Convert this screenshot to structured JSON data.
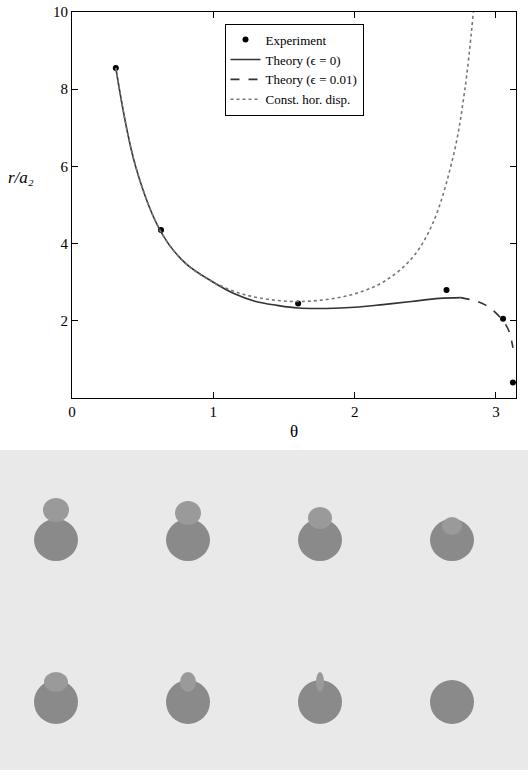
{
  "chart_data": {
    "type": "line",
    "x_label": "θ",
    "y_label": "r/a₂",
    "xlim": [
      0,
      3.1416
    ],
    "ylim": [
      0,
      10
    ],
    "xticks": [
      0,
      1,
      2,
      3
    ],
    "yticks": [
      2,
      4,
      6,
      8,
      10
    ],
    "grid": false,
    "legend": "top",
    "series": [
      {
        "name": "Experiment",
        "type": "scatter",
        "marker": "circle",
        "color": "#000000",
        "x": [
          0.31,
          0.63,
          1.6,
          2.65,
          3.05,
          3.12
        ],
        "values": [
          8.55,
          4.35,
          2.45,
          2.8,
          2.05,
          0.4
        ]
      },
      {
        "name": "Theory (ϵ = 0)",
        "type": "line",
        "line_style": "solid",
        "color": "#333333",
        "x": [
          0.31,
          0.45,
          0.63,
          0.8,
          1.0,
          1.15,
          1.3,
          1.45,
          1.6,
          1.8,
          2.0,
          2.2,
          2.4,
          2.6,
          2.75
        ],
        "values": [
          8.55,
          6.0,
          4.3,
          3.5,
          3.0,
          2.7,
          2.5,
          2.4,
          2.33,
          2.32,
          2.35,
          2.42,
          2.5,
          2.58,
          2.6
        ]
      },
      {
        "name": "Theory (ϵ = 0.01)",
        "type": "line",
        "line_style": "dashed",
        "color": "#333333",
        "x": [
          2.75,
          2.85,
          2.93,
          3.0,
          3.05,
          3.09,
          3.12
        ],
        "values": [
          2.6,
          2.52,
          2.4,
          2.2,
          2.0,
          1.75,
          1.3
        ]
      },
      {
        "name": "Const. hor. disp.",
        "type": "line",
        "line_style": "dotted",
        "color": "#777777",
        "x": [
          0.31,
          0.45,
          0.63,
          0.8,
          1.0,
          1.2,
          1.4,
          1.6,
          1.8,
          2.0,
          2.2,
          2.4,
          2.55,
          2.7,
          2.78,
          2.84
        ],
        "values": [
          8.55,
          6.0,
          4.3,
          3.5,
          3.0,
          2.7,
          2.55,
          2.5,
          2.55,
          2.7,
          3.0,
          3.6,
          4.5,
          6.3,
          8.0,
          10.0
        ]
      }
    ]
  }
}
